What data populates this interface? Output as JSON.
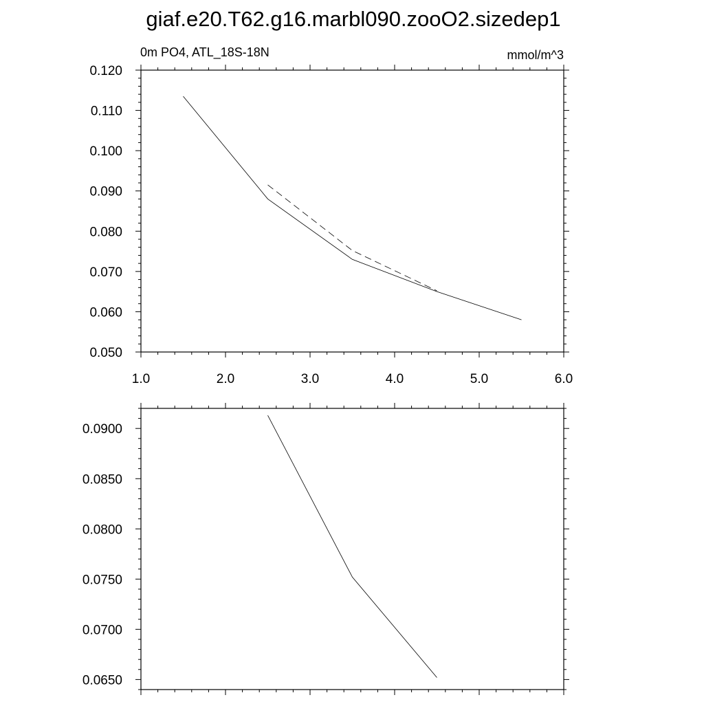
{
  "title": "giaf.e20.T62.g16.marbl090.zooO2.sizedep1",
  "chart_data": [
    {
      "type": "line",
      "left_label": "0m PO4, ATL_18S-18N",
      "right_label": "mmol/m^3",
      "xlim": [
        1.0,
        6.0
      ],
      "ylim": [
        0.05,
        0.12
      ],
      "x_tick_labels": [
        "1.0",
        "2.0",
        "3.0",
        "4.0",
        "5.0",
        "6.0"
      ],
      "y_tick_labels": [
        "0.050",
        "0.060",
        "0.070",
        "0.080",
        "0.090",
        "0.100",
        "0.110",
        "0.120"
      ],
      "series": [
        {
          "style": "solid",
          "x": [
            1.5,
            2.5,
            3.5,
            4.5,
            5.5
          ],
          "y": [
            0.1135,
            0.088,
            0.073,
            0.065,
            0.058
          ]
        },
        {
          "style": "dashed",
          "x": [
            2.5,
            3.5,
            4.5
          ],
          "y": [
            0.0915,
            0.0752,
            0.0652
          ]
        }
      ]
    },
    {
      "type": "line",
      "xlim": [
        1.0,
        6.0
      ],
      "ylim": [
        0.064,
        0.092
      ],
      "y_tick_labels": [
        "0.0650",
        "0.0700",
        "0.0750",
        "0.0800",
        "0.0850",
        "0.0900"
      ],
      "series": [
        {
          "style": "solid",
          "x": [
            2.5,
            3.5,
            4.5
          ],
          "y": [
            0.0913,
            0.0752,
            0.0652
          ]
        }
      ]
    }
  ]
}
